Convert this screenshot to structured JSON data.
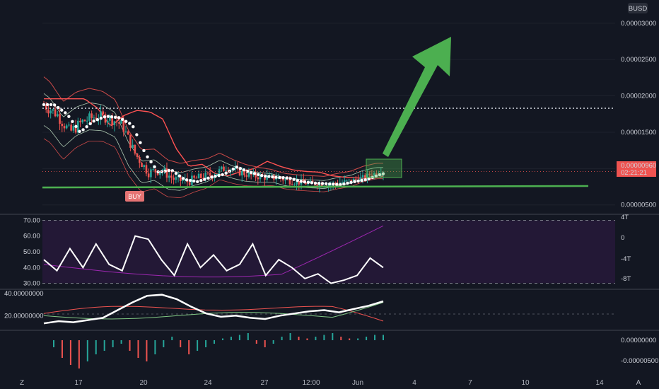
{
  "header": {
    "currency": "BUSD"
  },
  "corner": {
    "left": "Z",
    "right": "A"
  },
  "buy_label": "BUY",
  "price_tag": {
    "price": "0.00000960",
    "countdown": "02:21:21"
  },
  "colors": {
    "background": "#131722",
    "grid": "#1e222d",
    "up": "#26a69a",
    "down": "#ef5350",
    "arrow": "#4caf50",
    "support": "#4caf50",
    "rsi_band": "#2a1a3e"
  },
  "chart_data": [
    {
      "type": "candlestick",
      "pane": "price",
      "y_ticks": [
        "0.00003000",
        "0.00002500",
        "0.00002000",
        "0.00001500",
        "0.00001000",
        "0.00000500"
      ],
      "ylim": [
        4e-06,
        3.28e-05
      ],
      "x_ticks": [
        "17",
        "20",
        "24",
        "27",
        "12:00",
        "Jun",
        "4",
        "7",
        "10",
        "14"
      ],
      "resistance_dotted": 1.83e-05,
      "support_line": [
        7.4e-06,
        7.6e-06
      ],
      "close_series": [
        1.88e-05,
        1.75e-05,
        1.5e-05,
        1.65e-05,
        1.72e-05,
        1.7e-05,
        1.6e-05,
        1.2e-05,
        9.5e-06,
        9.8e-06,
        8.5e-06,
        8.2e-06,
        8.8e-06,
        9.2e-06,
        1.02e-05,
        9.5e-06,
        9e-06,
        8.8e-06,
        8.7e-06,
        8.2e-06,
        8e-06,
        7.9e-06,
        7.8e-06,
        8.2e-06,
        8.5e-06,
        9.2e-06,
        9.6e-06
      ],
      "annotations": [
        "BUY",
        "upward arrow",
        "green box"
      ]
    },
    {
      "type": "line",
      "pane": "rsi",
      "y_ticks": [
        "70.00",
        "60.00",
        "50.00",
        "40.00",
        "30.00"
      ],
      "right_ticks": [
        "4T",
        "0",
        "-4T",
        "-8T"
      ],
      "ylim": [
        28,
        72
      ],
      "bands": [
        70,
        30
      ],
      "series": [
        {
          "values": [
            45,
            38,
            52,
            40,
            55,
            42,
            38,
            60,
            58,
            45,
            35,
            55,
            40,
            48,
            38,
            42,
            55,
            35,
            45,
            40,
            33,
            36,
            30,
            32,
            35,
            46,
            40
          ]
        }
      ]
    },
    {
      "type": "line",
      "pane": "oscillator",
      "y_ticks": [
        "40.00000000",
        "20.00000000"
      ],
      "ylim": [
        8,
        42
      ],
      "series": [
        {
          "values": [
            13,
            15,
            14,
            16,
            18,
            25,
            32,
            38,
            39,
            35,
            28,
            22,
            19,
            20,
            18,
            17,
            20,
            22,
            24,
            25,
            23,
            26,
            29,
            33
          ]
        }
      ]
    },
    {
      "type": "bar",
      "pane": "histogram",
      "y_ticks": [
        "0.00000000",
        "-0.00000500"
      ],
      "values": [
        -2,
        -5,
        -7,
        -8,
        -6,
        -4,
        -3,
        -2,
        -1,
        -3,
        -5,
        -6,
        -4,
        -2,
        1,
        -2,
        -4,
        -3,
        -2,
        -1,
        0.5,
        1,
        1.5,
        2,
        -1,
        -2,
        -1,
        1,
        2,
        1,
        0.5,
        1,
        1.5,
        2,
        1,
        0.5,
        0.5,
        1,
        1.5,
        1.5
      ]
    }
  ]
}
